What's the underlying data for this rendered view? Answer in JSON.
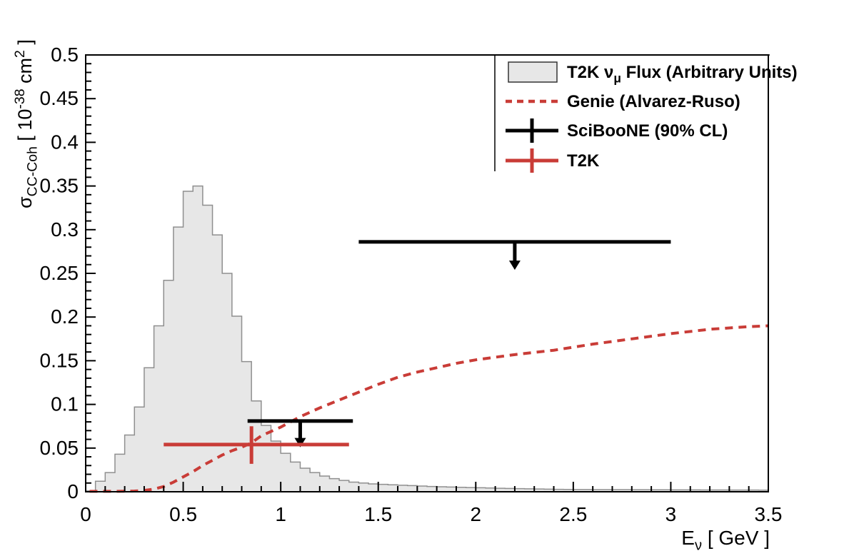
{
  "chart_data": {
    "type": "composite-physics-plot",
    "title": "",
    "xlim": [
      0,
      3.5
    ],
    "ylim": [
      0,
      0.5
    ],
    "xlabel_parts": [
      {
        "t": "E"
      },
      {
        "t": "ν",
        "s": "sub"
      },
      {
        "t": "  [ GeV ]"
      }
    ],
    "ylabel_parts": [
      {
        "t": "σ"
      },
      {
        "t": "CC-Coh",
        "s": "sub"
      },
      {
        "t": "  [ 10"
      },
      {
        "t": "-38",
        "s": "sup"
      },
      {
        "t": " cm"
      },
      {
        "t": "2",
        "s": "sup"
      },
      {
        "t": " ]"
      }
    ],
    "x_ticks": {
      "majors": [
        0,
        0.5,
        1,
        1.5,
        2,
        2.5,
        3,
        3.5
      ],
      "labels": [
        "0",
        "0.5",
        "1",
        "1.5",
        "2",
        "2.5",
        "3",
        "3.5"
      ],
      "minor_step": 0.1
    },
    "y_ticks": {
      "majors": [
        0,
        0.05,
        0.1,
        0.15,
        0.2,
        0.25,
        0.3,
        0.35,
        0.4,
        0.45,
        0.5
      ],
      "labels": [
        "0",
        "0.05",
        "0.1",
        "0.15",
        "0.2",
        "0.25",
        "0.3",
        "0.35",
        "0.4",
        "0.45",
        "0.5"
      ],
      "minor_step": 0.01
    },
    "grid": "off",
    "flux_histogram": {
      "name": "T2K numu Flux (Arbitrary Units)",
      "color": "#e7e7e7",
      "border_color": "#8f8f8f",
      "bin_start": 0,
      "bin_width": 0.05,
      "values": [
        0.001,
        0.012,
        0.022,
        0.043,
        0.065,
        0.097,
        0.142,
        0.19,
        0.242,
        0.303,
        0.344,
        0.35,
        0.328,
        0.294,
        0.25,
        0.201,
        0.149,
        0.104,
        0.076,
        0.058,
        0.044,
        0.034,
        0.027,
        0.022,
        0.018,
        0.015,
        0.013,
        0.011,
        0.01,
        0.009,
        0.0085,
        0.008,
        0.0075,
        0.007,
        0.0065,
        0.006,
        0.0057,
        0.0054,
        0.0051,
        0.0048,
        0.0046,
        0.0043,
        0.004,
        0.0038,
        0.0036,
        0.0034,
        0.0032,
        0.003,
        0.0028,
        0.0027,
        0.0026,
        0.0026,
        0.0025,
        0.0025,
        0.0024,
        0.0024,
        0.0023,
        0.0023,
        0.0022,
        0.0022,
        0.0021,
        0.0021,
        0.0021,
        0.002,
        0.002,
        0.002,
        0.0019,
        0.0019,
        0.0019,
        0.0018
      ]
    },
    "genie_curve": {
      "name": "Genie (Alvarez-Ruso)",
      "color": "#c93c37",
      "dash": [
        11,
        8
      ],
      "points": [
        [
          0.02,
          0.0005
        ],
        [
          0.1,
          0.0005
        ],
        [
          0.2,
          0.0006
        ],
        [
          0.25,
          0.0008
        ],
        [
          0.3,
          0.0015
        ],
        [
          0.35,
          0.003
        ],
        [
          0.4,
          0.006
        ],
        [
          0.45,
          0.011
        ],
        [
          0.5,
          0.017
        ],
        [
          0.55,
          0.023
        ],
        [
          0.6,
          0.03
        ],
        [
          0.65,
          0.036
        ],
        [
          0.7,
          0.042
        ],
        [
          0.75,
          0.047
        ],
        [
          0.8,
          0.051
        ],
        [
          0.85,
          0.056
        ],
        [
          0.9,
          0.064
        ],
        [
          0.95,
          0.069
        ],
        [
          1.0,
          0.074
        ],
        [
          1.05,
          0.08
        ],
        [
          1.1,
          0.086
        ],
        [
          1.15,
          0.091
        ],
        [
          1.2,
          0.096
        ],
        [
          1.3,
          0.105
        ],
        [
          1.4,
          0.114
        ],
        [
          1.5,
          0.123
        ],
        [
          1.6,
          0.131
        ],
        [
          1.7,
          0.137
        ],
        [
          1.8,
          0.142
        ],
        [
          1.9,
          0.147
        ],
        [
          2.0,
          0.151
        ],
        [
          2.2,
          0.157
        ],
        [
          2.4,
          0.162
        ],
        [
          2.6,
          0.169
        ],
        [
          2.8,
          0.175
        ],
        [
          3.0,
          0.181
        ],
        [
          3.2,
          0.186
        ],
        [
          3.4,
          0.189
        ],
        [
          3.5,
          0.19
        ]
      ]
    },
    "sciboone_limits": {
      "name": "SciBooNE (90% CL)",
      "color": "#000000",
      "items": [
        {
          "y": 0.286,
          "x_min": 1.4,
          "x_max": 3.0,
          "arrow_x": 2.2,
          "arrow_tip": 0.254
        },
        {
          "y": 0.081,
          "x_min": 0.83,
          "x_max": 1.37,
          "arrow_x": 1.1,
          "arrow_tip": 0.051
        }
      ]
    },
    "t2k_point": {
      "name": "T2K",
      "color": "#c93c37",
      "x": 0.85,
      "y": 0.054,
      "x_min": 0.4,
      "x_max": 1.35,
      "y_min": 0.032,
      "y_max": 0.075
    },
    "legend": {
      "rows": [
        {
          "marker": "box-fill",
          "label_parts": [
            {
              "t": "T2K "
            },
            {
              "t": "ν"
            },
            {
              "t": "μ",
              "s": "sub"
            },
            {
              "t": " Flux (Arbitrary Units)"
            }
          ]
        },
        {
          "marker": "dashed-line",
          "label_parts": [
            {
              "t": "Genie (Alvarez-Ruso)"
            }
          ]
        },
        {
          "marker": "cross-black",
          "label_parts": [
            {
              "t": "SciBooNE (90% CL)"
            }
          ]
        },
        {
          "marker": "cross-red",
          "label_parts": [
            {
              "t": "T2K"
            }
          ]
        }
      ]
    }
  }
}
